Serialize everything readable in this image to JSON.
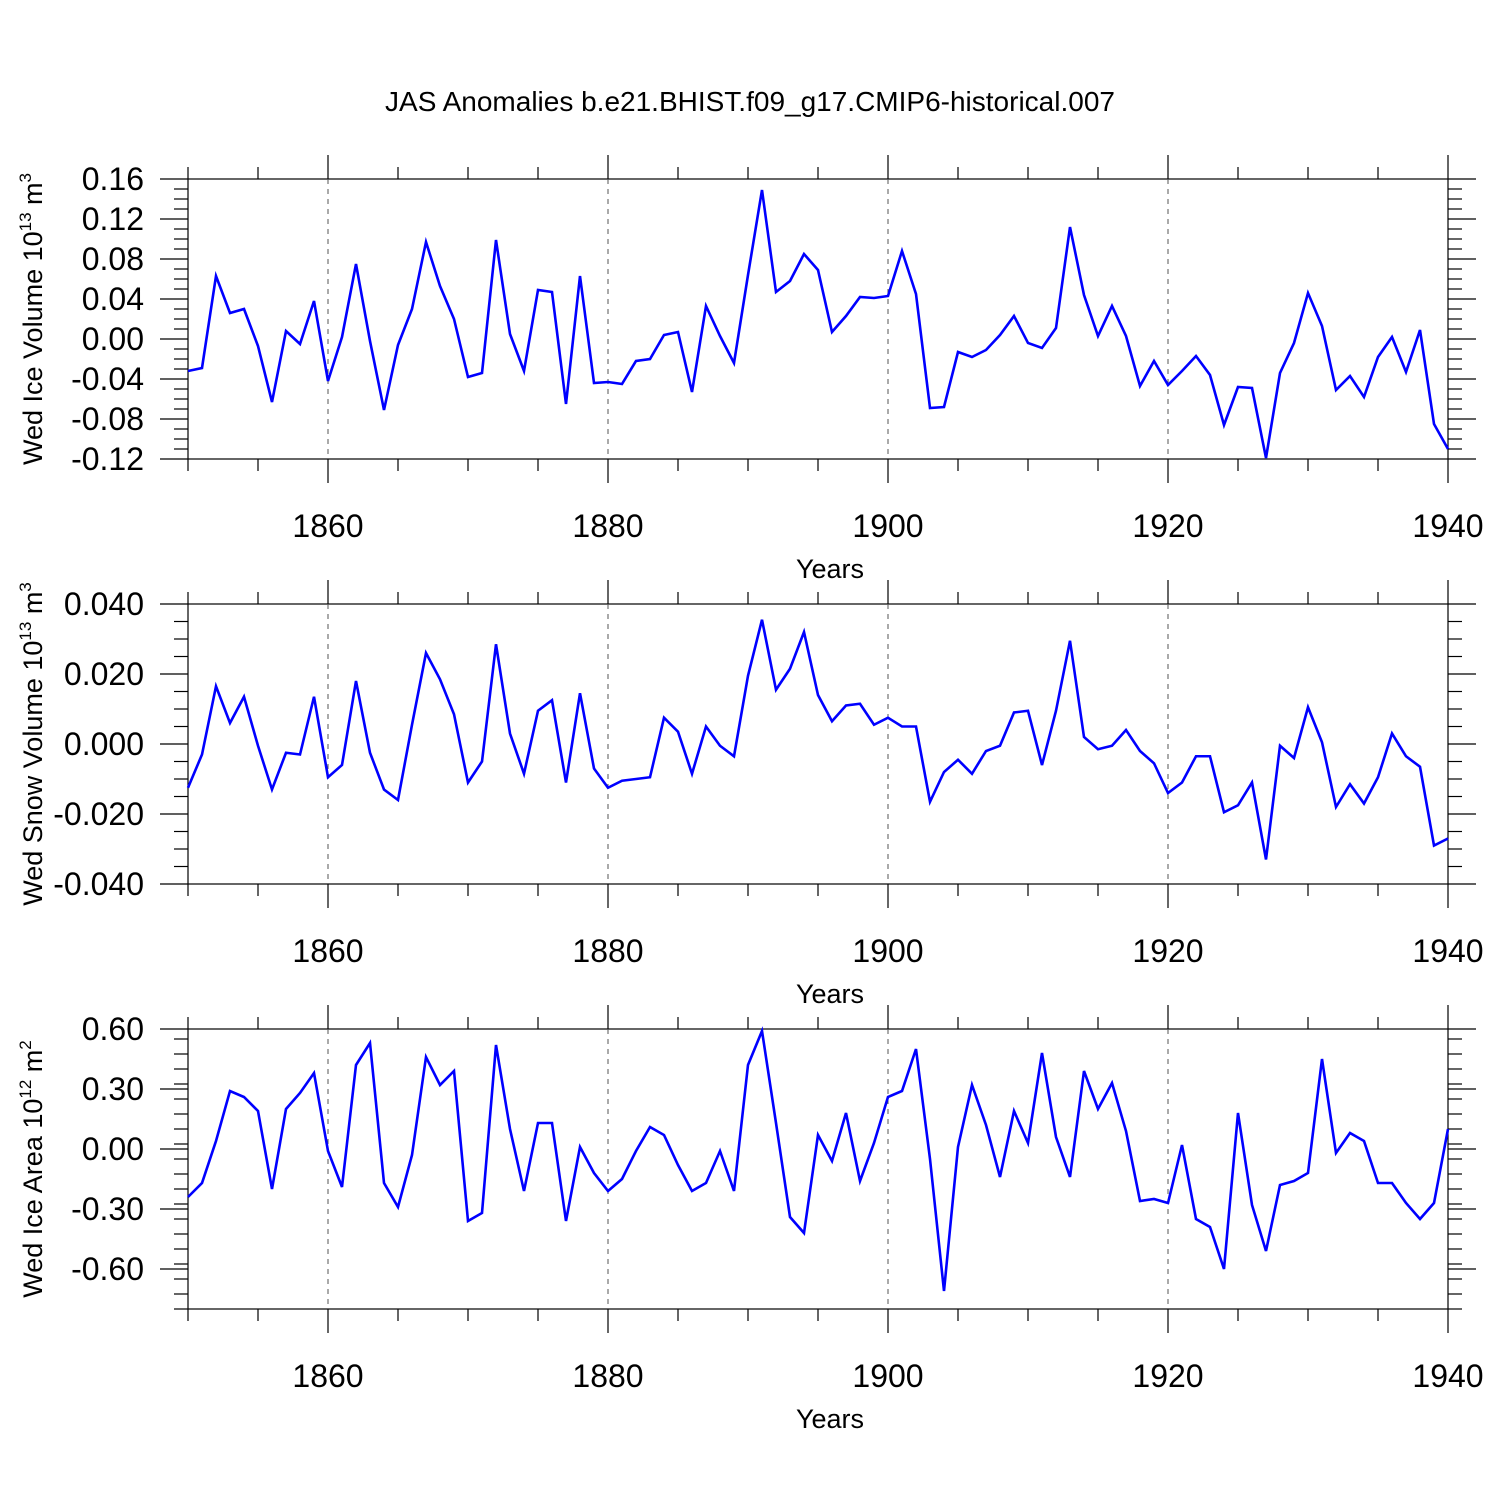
{
  "title": "JAS Anomalies b.e21.BHIST.f09_g17.CMIP6-historical.007",
  "colors": {
    "line": "#0000ff",
    "axis": "#000000",
    "grid": "#555555"
  },
  "chart_data": [
    {
      "type": "line",
      "title": "JAS Anomalies b.e21.BHIST.f09_g17.CMIP6-historical.007",
      "ylabel": {
        "main": "Wed Ice Volume 10",
        "exp": "13",
        "unit": " m",
        "unit_exp": "3"
      },
      "xlabel": "Years",
      "xlim": [
        1850,
        1940
      ],
      "ylim": [
        -0.12,
        0.16
      ],
      "yticks": [
        -0.12,
        -0.08,
        -0.04,
        0.0,
        0.04,
        0.08,
        0.12,
        0.16
      ],
      "ytick_labels": [
        "-0.12",
        "-0.08",
        "-0.04",
        "0.00",
        "0.04",
        "0.08",
        "0.12",
        "0.16"
      ],
      "xticks": [
        1860,
        1880,
        1900,
        1920,
        1940
      ],
      "xtick_labels": [
        "1860",
        "1880",
        "1900",
        "1920",
        "1940"
      ],
      "series": [
        {
          "name": "Wed Ice Volume",
          "x_start": 1850,
          "values": [
            -0.032,
            -0.029,
            0.063,
            0.026,
            0.03,
            -0.007,
            -0.063,
            0.008,
            -0.005,
            0.038,
            -0.042,
            0.002,
            0.075,
            -0.002,
            -0.071,
            -0.006,
            0.03,
            0.097,
            0.053,
            0.02,
            -0.038,
            -0.034,
            0.099,
            0.005,
            -0.032,
            0.049,
            0.047,
            -0.065,
            0.063,
            -0.044,
            -0.043,
            -0.045,
            -0.022,
            -0.02,
            0.004,
            0.007,
            -0.053,
            0.033,
            0.003,
            -0.024,
            0.064,
            0.149,
            0.047,
            0.058,
            0.085,
            0.069,
            0.007,
            0.023,
            0.042,
            0.041,
            0.043,
            0.088,
            0.045,
            -0.069,
            -0.068,
            -0.013,
            -0.018,
            -0.011,
            0.004,
            0.023,
            -0.004,
            -0.009,
            0.011,
            0.112,
            0.044,
            0.003,
            0.033,
            0.003,
            -0.047,
            -0.022,
            -0.046,
            -0.032,
            -0.017,
            -0.036,
            -0.086,
            -0.048,
            -0.049,
            -0.119,
            -0.034,
            -0.004,
            0.046,
            0.013,
            -0.051,
            -0.037,
            -0.058,
            -0.018,
            0.002,
            -0.033,
            0.009,
            -0.085,
            -0.11
          ]
        }
      ]
    },
    {
      "type": "line",
      "ylabel": {
        "main": "Wed Snow Volume 10",
        "exp": "13",
        "unit": " m",
        "unit_exp": "3"
      },
      "xlabel": "Years",
      "xlim": [
        1850,
        1940
      ],
      "ylim": [
        -0.04,
        0.04
      ],
      "yticks": [
        -0.04,
        -0.02,
        0.0,
        0.02,
        0.04
      ],
      "ytick_labels": [
        "-0.040",
        "-0.020",
        "0.000",
        "0.020",
        "0.040"
      ],
      "xticks": [
        1860,
        1880,
        1900,
        1920,
        1940
      ],
      "xtick_labels": [
        "1860",
        "1880",
        "1900",
        "1920",
        "1940"
      ],
      "series": [
        {
          "name": "Wed Snow Volume",
          "x_start": 1850,
          "values": [
            -0.0125,
            -0.003,
            0.0165,
            0.006,
            0.0135,
            -0.0005,
            -0.013,
            -0.0025,
            -0.003,
            0.0135,
            -0.0095,
            -0.006,
            0.018,
            -0.0025,
            -0.013,
            -0.016,
            0.0055,
            0.026,
            0.0185,
            0.0085,
            -0.011,
            -0.005,
            0.0285,
            0.003,
            -0.0085,
            0.0095,
            0.0125,
            -0.011,
            0.0145,
            -0.007,
            -0.0125,
            -0.0105,
            -0.01,
            -0.0095,
            0.0075,
            0.0035,
            -0.0085,
            0.005,
            -0.0005,
            -0.0035,
            0.0195,
            0.0355,
            0.0155,
            0.0215,
            0.032,
            0.014,
            0.0065,
            0.011,
            0.0115,
            0.0055,
            0.0075,
            0.005,
            0.005,
            -0.0165,
            -0.008,
            -0.0045,
            -0.0085,
            -0.002,
            -0.0005,
            0.009,
            0.0095,
            -0.006,
            0.0095,
            0.0295,
            0.002,
            -0.0015,
            -0.0005,
            0.004,
            -0.002,
            -0.0055,
            -0.014,
            -0.011,
            -0.0035,
            -0.0035,
            -0.0195,
            -0.0175,
            -0.011,
            -0.033,
            -0.0005,
            -0.004,
            0.0105,
            0.0005,
            -0.018,
            -0.0115,
            -0.017,
            -0.0095,
            0.003,
            -0.0035,
            -0.0065,
            -0.029,
            -0.027
          ]
        }
      ]
    },
    {
      "type": "line",
      "ylabel": {
        "main": "Wed Ice Area 10",
        "exp": "12",
        "unit": " m",
        "unit_exp": "2"
      },
      "xlabel": "Years",
      "xlim": [
        1850,
        1940
      ],
      "ylim": [
        -0.8,
        0.6
      ],
      "yticks": [
        -0.6,
        -0.3,
        0.0,
        0.3,
        0.6
      ],
      "ytick_labels": [
        "-0.60",
        "-0.30",
        "0.00",
        "0.30",
        "0.60"
      ],
      "xticks": [
        1860,
        1880,
        1900,
        1920,
        1940
      ],
      "xtick_labels": [
        "1860",
        "1880",
        "1900",
        "1920",
        "1940"
      ],
      "series": [
        {
          "name": "Wed Ice Area",
          "x_start": 1850,
          "values": [
            -0.24,
            -0.17,
            0.04,
            0.29,
            0.26,
            0.19,
            -0.2,
            0.2,
            0.28,
            0.38,
            -0.01,
            -0.19,
            0.42,
            0.53,
            -0.17,
            -0.29,
            -0.03,
            0.46,
            0.32,
            0.39,
            -0.36,
            -0.32,
            0.52,
            0.1,
            -0.21,
            0.13,
            0.13,
            -0.36,
            0.01,
            -0.12,
            -0.21,
            -0.15,
            -0.01,
            0.11,
            0.07,
            -0.08,
            -0.21,
            -0.17,
            -0.01,
            -0.21,
            0.42,
            0.59,
            0.13,
            -0.34,
            -0.42,
            0.07,
            -0.06,
            0.18,
            -0.16,
            0.03,
            0.26,
            0.29,
            0.5,
            -0.05,
            -0.71,
            0.01,
            0.32,
            0.12,
            -0.14,
            0.19,
            0.03,
            0.48,
            0.06,
            -0.14,
            0.39,
            0.2,
            0.33,
            0.09,
            -0.26,
            -0.25,
            -0.27,
            0.02,
            -0.35,
            -0.39,
            -0.6,
            0.18,
            -0.28,
            -0.51,
            -0.18,
            -0.16,
            -0.12,
            0.45,
            -0.02,
            0.08,
            0.04,
            -0.17,
            -0.17,
            -0.27,
            -0.35,
            -0.27,
            0.1
          ]
        }
      ]
    }
  ]
}
